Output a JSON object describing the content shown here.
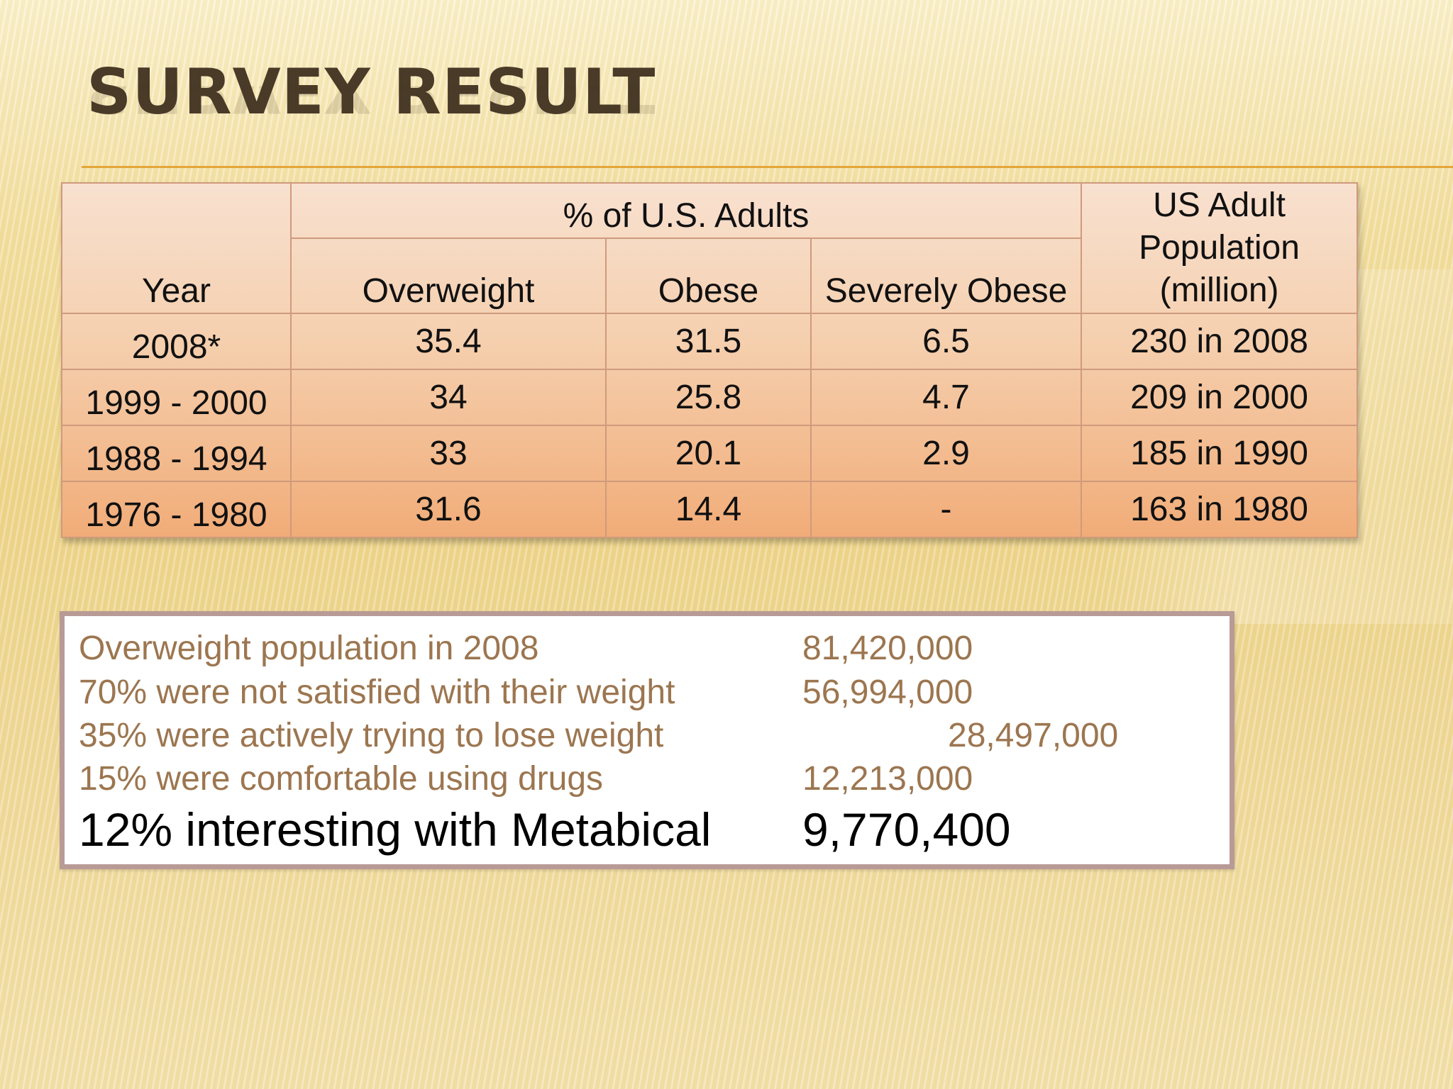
{
  "slide": {
    "title": "SURVEY RESULT"
  },
  "table": {
    "header": {
      "year": "Year",
      "group": "% of U.S. Adults",
      "overweight": "Overweight",
      "obese": "Obese",
      "severely_obese": "Severely Obese",
      "population": "US Adult Population (million)"
    },
    "rows": [
      {
        "year": "2008*",
        "overweight": "35.4",
        "obese": "31.5",
        "severely_obese": "6.5",
        "population": "230 in 2008"
      },
      {
        "year": "1999 - 2000",
        "overweight": "34",
        "obese": "25.8",
        "severely_obese": "4.7",
        "population": "209 in 2000"
      },
      {
        "year": "1988 - 1994",
        "overweight": "33",
        "obese": "20.1",
        "severely_obese": "2.9",
        "population": "185 in 1990"
      },
      {
        "year": "1976 - 1980",
        "overweight": "31.6",
        "obese": "14.4",
        "severely_obese": "-",
        "population": "163 in 1980"
      }
    ]
  },
  "summary": {
    "lines": [
      {
        "label": "Overweight population in 2008",
        "value": "81,420,000"
      },
      {
        "label": "70% were not satisfied with their weight",
        "value": "56,994,000"
      },
      {
        "label": "35% were actively trying to lose weight",
        "value": "28,497,000"
      },
      {
        "label": "15% were comfortable using drugs",
        "value": "12,213,000"
      },
      {
        "label": "12% interesting with Metabical",
        "value": "9,770,400"
      }
    ],
    "colors": {
      "muted_text": "#9c7650",
      "emphasis_text": "#000000"
    }
  },
  "theme": {
    "title_color": "#4a3a28",
    "rule_color": "#e4a63a",
    "table_border": "#cf9a7d"
  }
}
